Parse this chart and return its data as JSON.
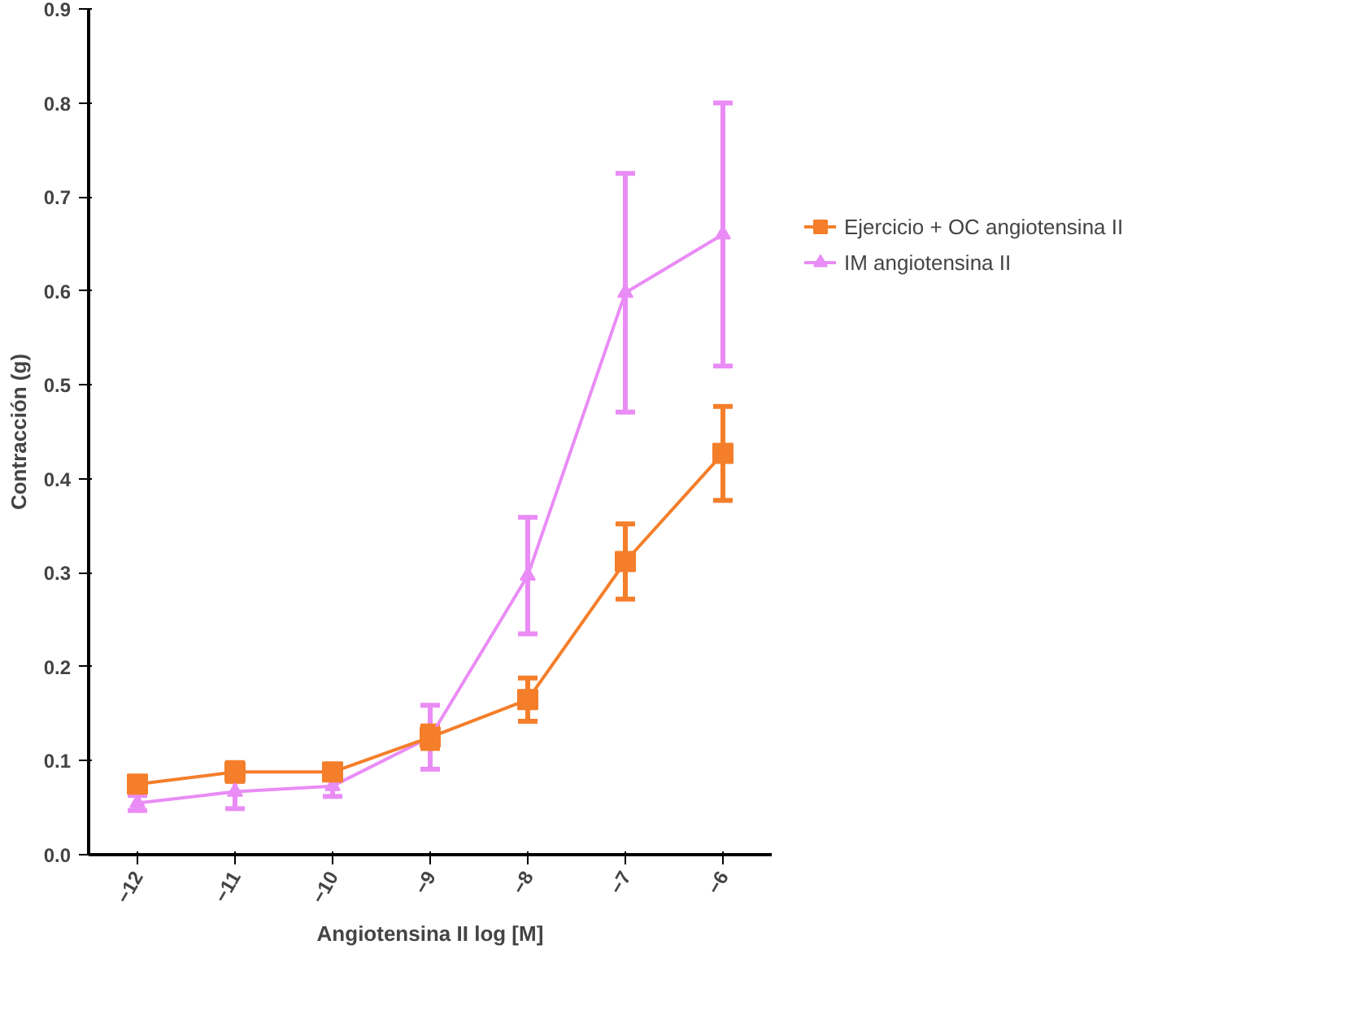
{
  "chart_data": {
    "type": "line",
    "xlabel": "Angiotensina II log [M]",
    "ylabel": "Contracción (g)",
    "x": [
      -12,
      -11,
      -10,
      -9,
      -8,
      -7,
      -6
    ],
    "xlim": [
      -12.5,
      -5.5
    ],
    "xticks": [
      -12,
      -11,
      -10,
      -9,
      -8,
      -7,
      -6
    ],
    "ylim": [
      0,
      0.9
    ],
    "yticks": [
      {
        "value": 0,
        "label": "0.0"
      },
      0.1,
      0.2,
      0.3,
      0.4,
      0.5,
      0.6,
      0.7,
      0.8,
      0.9
    ],
    "grid": false,
    "legend": "right",
    "line_style": "solid",
    "series": [
      {
        "name": "Ejercicio + OC angiotensina II",
        "color": "#f47e2a",
        "marker": "square",
        "values": [
          0.075,
          0.088,
          0.088,
          0.125,
          0.165,
          0.312,
          0.427
        ],
        "errors": [
          0.008,
          0.01,
          0.008,
          0.012,
          0.023,
          0.04,
          0.05
        ]
      },
      {
        "name": "IM angiotensina II",
        "color": "#e98cf5",
        "marker": "triangle",
        "values": [
          0.055,
          0.067,
          0.073,
          0.125,
          0.297,
          0.598,
          0.66
        ],
        "errors": [
          0.008,
          0.018,
          0.011,
          0.034,
          0.062,
          0.127,
          0.14
        ]
      }
    ]
  }
}
